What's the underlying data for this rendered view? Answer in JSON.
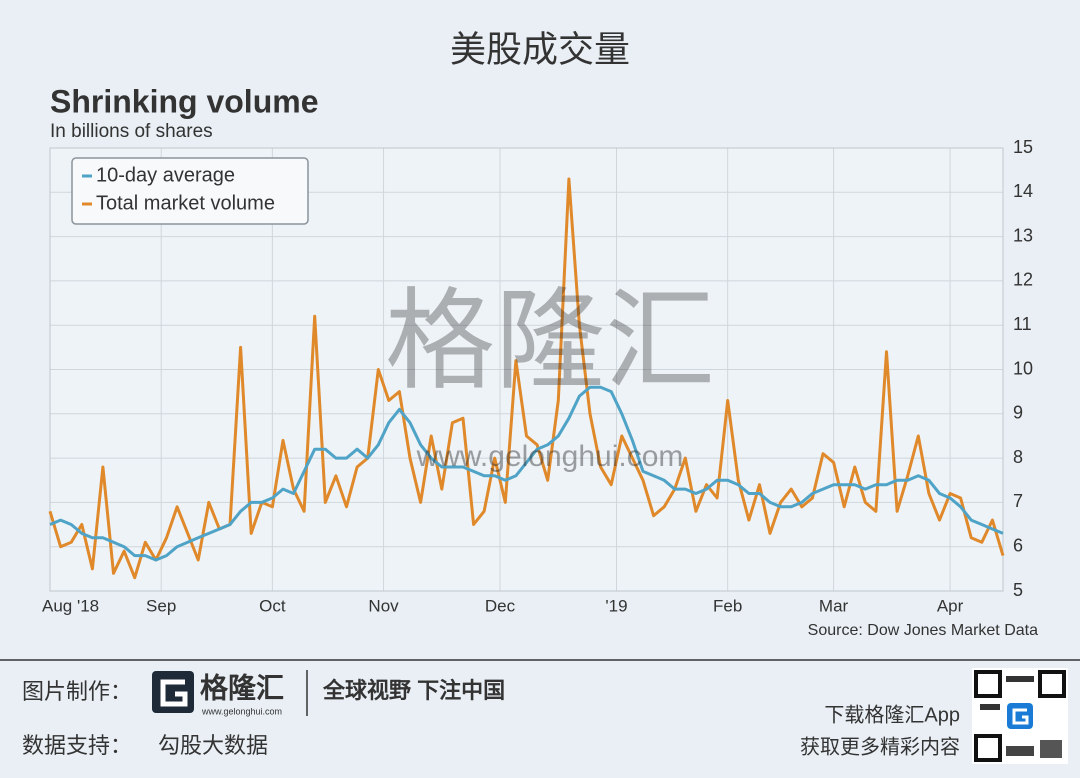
{
  "header": {
    "title": "美股成交量"
  },
  "chart_data": {
    "type": "line",
    "title": "Shrinking volume",
    "subtitle": "In billions of shares",
    "source": "Source: Dow Jones Market Data",
    "x": [
      0,
      2,
      4,
      6,
      8,
      10,
      12,
      14,
      16,
      18,
      20,
      22,
      24,
      26,
      28,
      30,
      32,
      34,
      36,
      38,
      40,
      42,
      44,
      46,
      48,
      50,
      52,
      54,
      56,
      58,
      60,
      62,
      64,
      66,
      68,
      70,
      72,
      74,
      76,
      78,
      80,
      82,
      84,
      86,
      88,
      90,
      92,
      94,
      96,
      98,
      100,
      102,
      104,
      106,
      108,
      110,
      112,
      114,
      116,
      118,
      120,
      122,
      124,
      126,
      128,
      130,
      132,
      134,
      136,
      138,
      140,
      142,
      144,
      146,
      148,
      150,
      152,
      154,
      156,
      158,
      160,
      162,
      164,
      166,
      168,
      170,
      172,
      174,
      176,
      178,
      180
    ],
    "series": [
      {
        "name": "10-day average",
        "color": "#4fa3c7",
        "values": [
          6.5,
          6.6,
          6.5,
          6.3,
          6.2,
          6.2,
          6.1,
          6.0,
          5.8,
          5.8,
          5.7,
          5.8,
          6.0,
          6.1,
          6.2,
          6.3,
          6.4,
          6.5,
          6.8,
          7.0,
          7.0,
          7.1,
          7.3,
          7.2,
          7.7,
          8.2,
          8.2,
          8.0,
          8.0,
          8.2,
          8.0,
          8.3,
          8.8,
          9.1,
          8.8,
          8.3,
          8.0,
          7.8,
          7.8,
          7.8,
          7.7,
          7.6,
          7.6,
          7.5,
          7.6,
          7.9,
          8.2,
          8.3,
          8.5,
          8.9,
          9.4,
          9.6,
          9.6,
          9.5,
          9.0,
          8.4,
          7.7,
          7.6,
          7.5,
          7.3,
          7.3,
          7.2,
          7.3,
          7.5,
          7.5,
          7.4,
          7.2,
          7.2,
          7.0,
          6.9,
          6.9,
          7.0,
          7.2,
          7.3,
          7.4,
          7.4,
          7.4,
          7.3,
          7.4,
          7.4,
          7.5,
          7.5,
          7.6,
          7.5,
          7.2,
          7.1,
          6.9,
          6.6,
          6.5,
          6.4,
          6.3
        ]
      },
      {
        "name": "Total market volume",
        "color": "#e0892b",
        "values": [
          6.8,
          6.0,
          6.1,
          6.5,
          5.5,
          7.8,
          5.4,
          5.9,
          5.3,
          6.1,
          5.7,
          6.2,
          6.9,
          6.3,
          5.7,
          7.0,
          6.4,
          6.5,
          10.5,
          6.3,
          7.0,
          6.9,
          8.4,
          7.3,
          6.8,
          11.2,
          7.0,
          7.6,
          6.9,
          7.8,
          8.0,
          10.0,
          9.3,
          9.5,
          8.0,
          7.0,
          8.5,
          7.3,
          8.8,
          8.9,
          6.5,
          6.8,
          8.0,
          7.0,
          10.2,
          8.5,
          8.3,
          7.5,
          9.3,
          14.3,
          11.0,
          9.0,
          7.8,
          7.4,
          8.5,
          8.0,
          7.5,
          6.7,
          6.9,
          7.3,
          8.0,
          6.8,
          7.4,
          7.1,
          9.3,
          7.5,
          6.6,
          7.4,
          6.3,
          7.0,
          7.3,
          6.9,
          7.1,
          8.1,
          7.9,
          6.9,
          7.8,
          7.0,
          6.8,
          10.4,
          6.8,
          7.6,
          8.5,
          7.2,
          6.6,
          7.2,
          7.1,
          6.2,
          6.1,
          6.6,
          5.8
        ]
      }
    ],
    "xlim": [
      0,
      180
    ],
    "xticks": [
      {
        "value": 0,
        "label": "Aug '18"
      },
      {
        "value": 21,
        "label": "Sep"
      },
      {
        "value": 42,
        "label": "Oct"
      },
      {
        "value": 63,
        "label": "Nov"
      },
      {
        "value": 85,
        "label": "Dec"
      },
      {
        "value": 107,
        "label": "'19"
      },
      {
        "value": 128,
        "label": "Feb"
      },
      {
        "value": 148,
        "label": "Mar"
      },
      {
        "value": 170,
        "label": "Apr"
      }
    ],
    "ylim": [
      5,
      15
    ],
    "yticks": [
      5,
      6,
      7,
      8,
      9,
      10,
      11,
      12,
      13,
      14,
      15
    ],
    "grid": true,
    "legend": "upper left"
  },
  "watermark": {
    "brand": "格隆汇",
    "url": "www.gelonghui.com"
  },
  "footer": {
    "made_by_label": "图片制作：",
    "logo_name": "格隆汇",
    "logo_url": "www.gelonghui.com",
    "slogan": "全球视野 下注中国",
    "data_label": "数据支持：",
    "data_provider": "勾股大数据",
    "download": "下载格隆汇App",
    "more": "获取更多精彩内容"
  }
}
